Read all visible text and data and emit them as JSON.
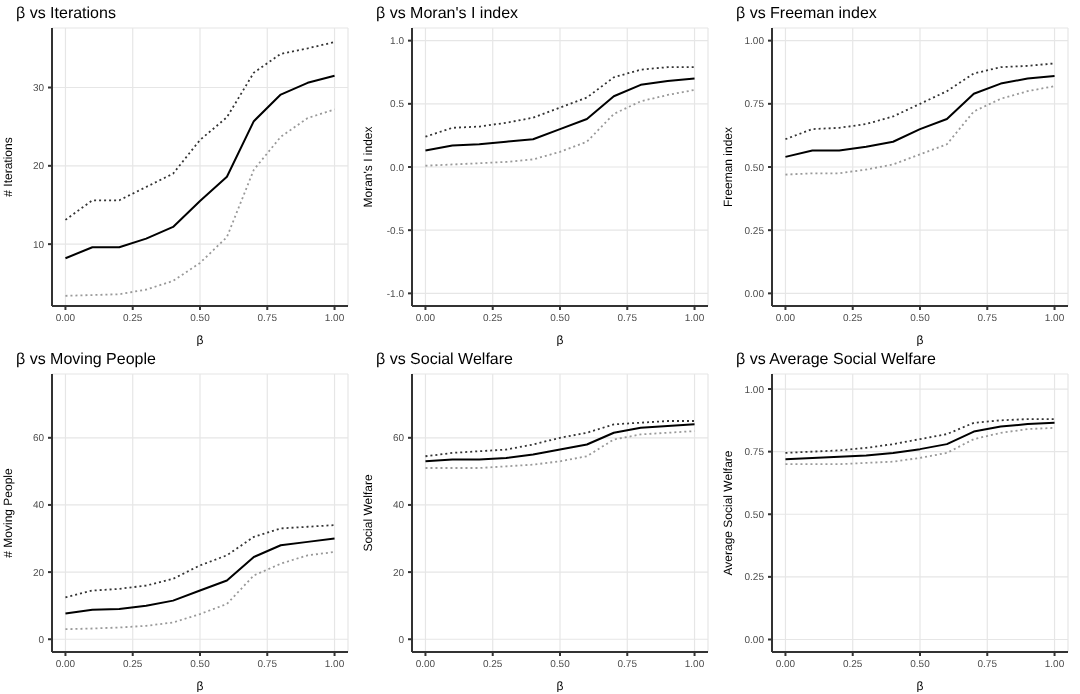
{
  "chart_data": [
    {
      "type": "line",
      "title": "β vs Iterations",
      "xlabel": "β",
      "ylabel": "# Iterations",
      "x": [
        0,
        0.1,
        0.2,
        0.3,
        0.4,
        0.5,
        0.6,
        0.7,
        0.8,
        0.9,
        1
      ],
      "xlim": [
        -0.05,
        1.05
      ],
      "xticks": [
        {
          "value": 0,
          "label": "0.00"
        },
        {
          "value": 0.25,
          "label": "0.25"
        },
        {
          "value": 0.5,
          "label": "0.50"
        },
        {
          "value": 0.75,
          "label": "0.75"
        },
        {
          "value": 1,
          "label": "1.00"
        }
      ],
      "ylim": [
        2.1,
        37.6
      ],
      "yticks": [
        10,
        20,
        30
      ],
      "grid": true,
      "marker": "none",
      "series": [
        {
          "color": "#333333",
          "line_style": "dotted",
          "values": [
            13.1,
            15.6,
            15.6,
            17.3,
            19.0,
            23.3,
            26.2,
            31.9,
            34.3,
            35.0,
            35.8
          ]
        },
        {
          "color": "#000000",
          "line_style": "solid",
          "values": [
            8.2,
            9.6,
            9.6,
            10.7,
            12.2,
            15.5,
            18.6,
            25.7,
            29.1,
            30.6,
            31.5
          ]
        },
        {
          "color": "#999999",
          "line_style": "dotted",
          "values": [
            3.4,
            3.5,
            3.6,
            4.2,
            5.3,
            7.6,
            10.9,
            19.5,
            23.7,
            26.1,
            27.2
          ]
        }
      ]
    },
    {
      "type": "line",
      "title": "β vs Moran's I index",
      "xlabel": "β",
      "ylabel": "Moran's I index",
      "x": [
        0,
        0.1,
        0.2,
        0.3,
        0.4,
        0.5,
        0.6,
        0.7,
        0.8,
        0.9,
        1
      ],
      "xlim": [
        -0.05,
        1.05
      ],
      "xticks": [
        {
          "value": 0,
          "label": "0.00"
        },
        {
          "value": 0.25,
          "label": "0.25"
        },
        {
          "value": 0.5,
          "label": "0.50"
        },
        {
          "value": 0.75,
          "label": "0.75"
        },
        {
          "value": 1,
          "label": "1.00"
        }
      ],
      "ylim": [
        -1.1,
        1.1
      ],
      "yticks": [
        {
          "value": -1,
          "label": "-1.0"
        },
        {
          "value": -0.5,
          "label": "-0.5"
        },
        {
          "value": 0,
          "label": "0.0"
        },
        {
          "value": 0.5,
          "label": "0.5"
        },
        {
          "value": 1,
          "label": "1.0"
        }
      ],
      "grid": true,
      "marker": "none",
      "series": [
        {
          "color": "#333333",
          "line_style": "dotted",
          "values": [
            0.24,
            0.31,
            0.32,
            0.35,
            0.39,
            0.47,
            0.55,
            0.71,
            0.77,
            0.79,
            0.79
          ]
        },
        {
          "color": "#000000",
          "line_style": "solid",
          "values": [
            0.13,
            0.17,
            0.18,
            0.2,
            0.22,
            0.3,
            0.38,
            0.56,
            0.65,
            0.68,
            0.7
          ]
        },
        {
          "color": "#999999",
          "line_style": "dotted",
          "values": [
            0.01,
            0.02,
            0.03,
            0.04,
            0.06,
            0.12,
            0.2,
            0.42,
            0.52,
            0.57,
            0.61
          ]
        }
      ]
    },
    {
      "type": "line",
      "title": "β vs Freeman index",
      "xlabel": "β",
      "ylabel": "Freeman index",
      "x": [
        0,
        0.1,
        0.2,
        0.3,
        0.4,
        0.5,
        0.6,
        0.7,
        0.8,
        0.9,
        1
      ],
      "xlim": [
        -0.05,
        1.05
      ],
      "xticks": [
        {
          "value": 0,
          "label": "0.00"
        },
        {
          "value": 0.25,
          "label": "0.25"
        },
        {
          "value": 0.5,
          "label": "0.50"
        },
        {
          "value": 0.75,
          "label": "0.75"
        },
        {
          "value": 1,
          "label": "1.00"
        }
      ],
      "ylim": [
        -0.05,
        1.05
      ],
      "yticks": [
        {
          "value": 0,
          "label": "0.00"
        },
        {
          "value": 0.25,
          "label": "0.25"
        },
        {
          "value": 0.5,
          "label": "0.50"
        },
        {
          "value": 0.75,
          "label": "0.75"
        },
        {
          "value": 1,
          "label": "1.00"
        }
      ],
      "grid": true,
      "marker": "none",
      "series": [
        {
          "color": "#333333",
          "line_style": "dotted",
          "values": [
            0.61,
            0.65,
            0.655,
            0.67,
            0.7,
            0.75,
            0.8,
            0.87,
            0.895,
            0.9,
            0.91
          ]
        },
        {
          "color": "#000000",
          "line_style": "solid",
          "values": [
            0.54,
            0.565,
            0.565,
            0.58,
            0.6,
            0.65,
            0.69,
            0.79,
            0.83,
            0.85,
            0.86
          ]
        },
        {
          "color": "#999999",
          "line_style": "dotted",
          "values": [
            0.47,
            0.475,
            0.475,
            0.49,
            0.51,
            0.55,
            0.59,
            0.72,
            0.77,
            0.8,
            0.82
          ]
        }
      ]
    },
    {
      "type": "line",
      "title": "β vs Moving People",
      "xlabel": "β",
      "ylabel": "# Moving People",
      "x": [
        0,
        0.1,
        0.2,
        0.3,
        0.4,
        0.5,
        0.6,
        0.7,
        0.8,
        0.9,
        1
      ],
      "xlim": [
        -0.05,
        1.05
      ],
      "xticks": [
        {
          "value": 0,
          "label": "0.00"
        },
        {
          "value": 0.25,
          "label": "0.25"
        },
        {
          "value": 0.5,
          "label": "0.50"
        },
        {
          "value": 0.75,
          "label": "0.75"
        },
        {
          "value": 1,
          "label": "1.00"
        }
      ],
      "ylim": [
        -3.8,
        79
      ],
      "yticks": [
        0,
        20,
        40,
        60
      ],
      "grid": true,
      "marker": "none",
      "series": [
        {
          "color": "#333333",
          "line_style": "dotted",
          "values": [
            12.5,
            14.5,
            15,
            16,
            18,
            22,
            25,
            30.5,
            33,
            33.5,
            34
          ]
        },
        {
          "color": "#000000",
          "line_style": "solid",
          "values": [
            7.7,
            8.8,
            9,
            10,
            11.5,
            14.5,
            17.5,
            24.5,
            28,
            29,
            30
          ]
        },
        {
          "color": "#999999",
          "line_style": "dotted",
          "values": [
            3,
            3.2,
            3.5,
            4,
            5,
            7.5,
            10.5,
            19,
            22.5,
            25,
            26
          ]
        }
      ]
    },
    {
      "type": "line",
      "title": "β vs Social Welfare",
      "xlabel": "β",
      "ylabel": "Social Welfare",
      "x": [
        0,
        0.1,
        0.2,
        0.3,
        0.4,
        0.5,
        0.6,
        0.7,
        0.8,
        0.9,
        1
      ],
      "xlim": [
        -0.05,
        1.05
      ],
      "xticks": [
        {
          "value": 0,
          "label": "0.00"
        },
        {
          "value": 0.25,
          "label": "0.25"
        },
        {
          "value": 0.5,
          "label": "0.50"
        },
        {
          "value": 0.75,
          "label": "0.75"
        },
        {
          "value": 1,
          "label": "1.00"
        }
      ],
      "ylim": [
        -3.8,
        79
      ],
      "yticks": [
        0,
        20,
        40,
        60
      ],
      "grid": true,
      "marker": "none",
      "series": [
        {
          "color": "#333333",
          "line_style": "dotted",
          "values": [
            54.5,
            55.5,
            56,
            56.5,
            58,
            60,
            61.5,
            64,
            64.5,
            65,
            65
          ]
        },
        {
          "color": "#000000",
          "line_style": "solid",
          "values": [
            53,
            53.5,
            53.5,
            54,
            55,
            56.5,
            58,
            61.5,
            63,
            63.5,
            64
          ]
        },
        {
          "color": "#999999",
          "line_style": "dotted",
          "values": [
            51,
            51,
            51,
            51.5,
            52,
            53,
            54.5,
            59.5,
            61,
            61.5,
            62
          ]
        }
      ]
    },
    {
      "type": "line",
      "title": "β vs Average Social Welfare",
      "xlabel": "β",
      "ylabel": "Average Social Welfare",
      "x": [
        0,
        0.1,
        0.2,
        0.3,
        0.4,
        0.5,
        0.6,
        0.7,
        0.8,
        0.9,
        1
      ],
      "xlim": [
        -0.05,
        1.05
      ],
      "xticks": [
        {
          "value": 0,
          "label": "0.00"
        },
        {
          "value": 0.25,
          "label": "0.25"
        },
        {
          "value": 0.5,
          "label": "0.50"
        },
        {
          "value": 0.75,
          "label": "0.75"
        },
        {
          "value": 1,
          "label": "1.00"
        }
      ],
      "ylim": [
        -0.05,
        1.06
      ],
      "yticks": [
        {
          "value": 0,
          "label": "0.00"
        },
        {
          "value": 0.25,
          "label": "0.25"
        },
        {
          "value": 0.5,
          "label": "0.50"
        },
        {
          "value": 0.75,
          "label": "0.75"
        },
        {
          "value": 1,
          "label": "1.00"
        }
      ],
      "grid": true,
      "marker": "none",
      "series": [
        {
          "color": "#333333",
          "line_style": "dotted",
          "values": [
            0.745,
            0.75,
            0.755,
            0.765,
            0.78,
            0.8,
            0.82,
            0.865,
            0.875,
            0.88,
            0.88
          ]
        },
        {
          "color": "#000000",
          "line_style": "solid",
          "values": [
            0.72,
            0.725,
            0.73,
            0.735,
            0.745,
            0.76,
            0.78,
            0.83,
            0.85,
            0.86,
            0.865
          ]
        },
        {
          "color": "#999999",
          "line_style": "dotted",
          "values": [
            0.7,
            0.7,
            0.7,
            0.705,
            0.71,
            0.725,
            0.745,
            0.8,
            0.825,
            0.84,
            0.845
          ]
        }
      ]
    }
  ]
}
